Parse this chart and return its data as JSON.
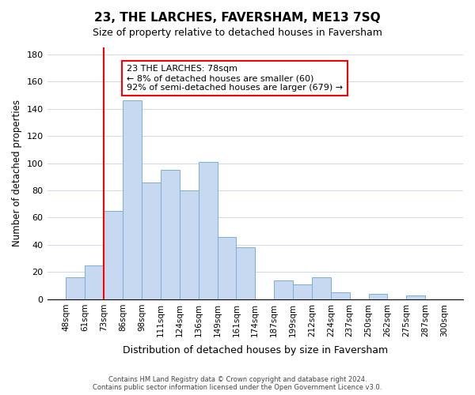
{
  "title": "23, THE LARCHES, FAVERSHAM, ME13 7SQ",
  "subtitle": "Size of property relative to detached houses in Faversham",
  "xlabel": "Distribution of detached houses by size in Faversham",
  "ylabel": "Number of detached properties",
  "footer_line1": "Contains HM Land Registry data © Crown copyright and database right 2024.",
  "footer_line2": "Contains public sector information licensed under the Open Government Licence v3.0.",
  "bins": [
    "48sqm",
    "61sqm",
    "73sqm",
    "86sqm",
    "98sqm",
    "111sqm",
    "124sqm",
    "136sqm",
    "149sqm",
    "161sqm",
    "174sqm",
    "187sqm",
    "199sqm",
    "212sqm",
    "224sqm",
    "237sqm",
    "250sqm",
    "262sqm",
    "275sqm",
    "287sqm",
    "300sqm"
  ],
  "values": [
    16,
    25,
    65,
    146,
    86,
    95,
    80,
    101,
    46,
    38,
    0,
    14,
    11,
    16,
    5,
    0,
    4,
    0,
    3,
    0,
    1
  ],
  "bar_color": "#c6d9f0",
  "bar_edge_color": "#7bafd4",
  "vline_x": 2,
  "vline_color": "red",
  "annotation_title": "23 THE LARCHES: 78sqm",
  "annotation_line1": "← 8% of detached houses are smaller (60)",
  "annotation_line2": "92% of semi-detached houses are larger (679) →",
  "annotation_box_color": "white",
  "annotation_box_edge": "red",
  "ylim": [
    0,
    185
  ],
  "yticks": [
    0,
    20,
    40,
    60,
    80,
    100,
    120,
    140,
    160,
    180
  ],
  "property_sqm": 78
}
